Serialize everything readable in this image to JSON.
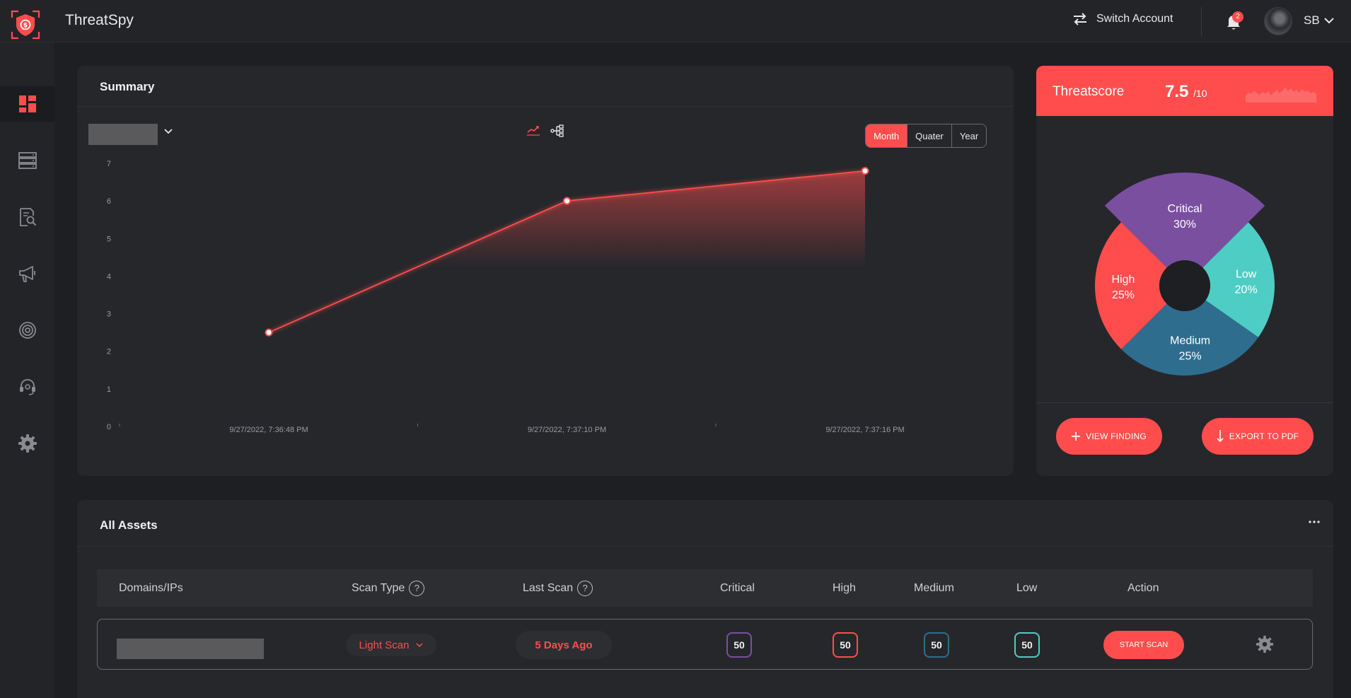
{
  "app": {
    "name": "ThreatSpy"
  },
  "header": {
    "switch_account_label": "Switch Account",
    "notification_count": "2",
    "user_initials": "SB"
  },
  "sidebar": {
    "items": [
      {
        "icon": "dashboard-icon",
        "active": true
      },
      {
        "icon": "servers-icon",
        "active": false
      },
      {
        "icon": "report-search-icon",
        "active": false
      },
      {
        "icon": "megaphone-icon",
        "active": false
      },
      {
        "icon": "target-icon",
        "active": false
      },
      {
        "icon": "support-headset-icon",
        "active": false
      },
      {
        "icon": "settings-gear-icon",
        "active": false
      }
    ]
  },
  "summary": {
    "title": "Summary",
    "periods": [
      "Month",
      "Quater",
      "Year"
    ],
    "active_period": "Month"
  },
  "chart_data": {
    "type": "area",
    "x": [
      "9/27/2022, 7:36:48 PM",
      "9/27/2022, 7:37:10 PM",
      "9/27/2022, 7:37:16 PM"
    ],
    "values": [
      2.5,
      6,
      6.8
    ],
    "ylim": [
      0,
      7
    ],
    "yticks": [
      0,
      1,
      2,
      3,
      4,
      5,
      6,
      7
    ],
    "color": "#ff4d4d",
    "grid": false
  },
  "threatscore": {
    "label": "Threatscore",
    "value": "7.5",
    "max": "/10",
    "breakdown": [
      {
        "name": "Critical",
        "percent": "30%",
        "color": "#7a4fa0"
      },
      {
        "name": "Low",
        "percent": "20%",
        "color": "#4ecdc4"
      },
      {
        "name": "Medium",
        "percent": "25%",
        "color": "#2f6d8f"
      },
      {
        "name": "High",
        "percent": "25%",
        "color": "#ff4d4d"
      }
    ],
    "view_finding_label": "VIEW FINDING",
    "export_label": "EXPORT TO PDF"
  },
  "assets": {
    "title": "All Assets",
    "columns": {
      "domains": "Domains/IPs",
      "scan_type": "Scan Type",
      "last_scan": "Last Scan",
      "critical": "Critical",
      "high": "High",
      "medium": "Medium",
      "low": "Low",
      "action": "Action"
    },
    "rows": [
      {
        "scan_type": "Light Scan",
        "last_scan": "5 Days Ago",
        "critical": "50",
        "high": "50",
        "medium": "50",
        "low": "50",
        "action_label": "START SCAN"
      }
    ]
  },
  "colors": {
    "accent": "#ff4d4d",
    "critical": "#7a4fa0",
    "high": "#ff4d4d",
    "medium": "#2f6d8f",
    "low": "#4ecdc4"
  }
}
